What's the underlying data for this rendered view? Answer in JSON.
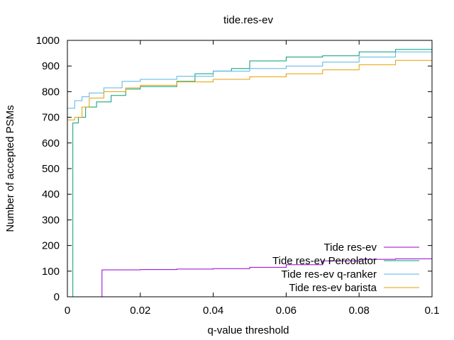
{
  "chart_data": {
    "type": "line",
    "title": "tide.res-ev",
    "xlabel": "q-value threshold",
    "ylabel": "Number of accepted PSMs",
    "xlim": [
      0,
      0.1
    ],
    "ylim": [
      0,
      1000
    ],
    "x_ticks": [
      "0",
      "0.02",
      "0.04",
      "0.06",
      "0.08",
      "0.1"
    ],
    "y_ticks": [
      "0",
      "100",
      "200",
      "300",
      "400",
      "500",
      "600",
      "700",
      "800",
      "900",
      "1000"
    ],
    "grid": false,
    "legend_position": "bottom-right",
    "series": [
      {
        "name": "Tide res-ev",
        "color": "#9400d3",
        "points": [
          [
            0.0095,
            0
          ],
          [
            0.0095,
            105
          ],
          [
            0.02,
            106
          ],
          [
            0.03,
            108
          ],
          [
            0.04,
            110
          ],
          [
            0.05,
            115
          ],
          [
            0.06,
            125
          ],
          [
            0.07,
            140
          ],
          [
            0.08,
            146
          ],
          [
            0.09,
            148
          ],
          [
            0.1,
            150
          ]
        ]
      },
      {
        "name": "Tide res-ev Percolator",
        "color": "#009e73",
        "points": [
          [
            0.0015,
            0
          ],
          [
            0.0015,
            678
          ],
          [
            0.003,
            700
          ],
          [
            0.005,
            740
          ],
          [
            0.008,
            760
          ],
          [
            0.012,
            785
          ],
          [
            0.016,
            810
          ],
          [
            0.02,
            820
          ],
          [
            0.03,
            840
          ],
          [
            0.035,
            870
          ],
          [
            0.04,
            880
          ],
          [
            0.045,
            890
          ],
          [
            0.05,
            920
          ],
          [
            0.06,
            935
          ],
          [
            0.07,
            940
          ],
          [
            0.08,
            955
          ],
          [
            0.09,
            965
          ],
          [
            0.1,
            980
          ]
        ]
      },
      {
        "name": "Tide res-ev q-ranker",
        "color": "#56b4e9",
        "points": [
          [
            0,
            735
          ],
          [
            0.002,
            765
          ],
          [
            0.004,
            780
          ],
          [
            0.006,
            795
          ],
          [
            0.01,
            815
          ],
          [
            0.015,
            840
          ],
          [
            0.02,
            848
          ],
          [
            0.03,
            860
          ],
          [
            0.04,
            880
          ],
          [
            0.05,
            890
          ],
          [
            0.06,
            900
          ],
          [
            0.07,
            915
          ],
          [
            0.08,
            935
          ],
          [
            0.09,
            955
          ],
          [
            0.1,
            975
          ]
        ]
      },
      {
        "name": "Tide res-ev barista",
        "color": "#e69f00",
        "points": [
          [
            0,
            690
          ],
          [
            0.002,
            700
          ],
          [
            0.004,
            740
          ],
          [
            0.006,
            775
          ],
          [
            0.01,
            800
          ],
          [
            0.016,
            815
          ],
          [
            0.02,
            825
          ],
          [
            0.03,
            838
          ],
          [
            0.04,
            848
          ],
          [
            0.05,
            858
          ],
          [
            0.06,
            870
          ],
          [
            0.07,
            885
          ],
          [
            0.08,
            905
          ],
          [
            0.09,
            922
          ],
          [
            0.1,
            938
          ]
        ]
      }
    ]
  }
}
